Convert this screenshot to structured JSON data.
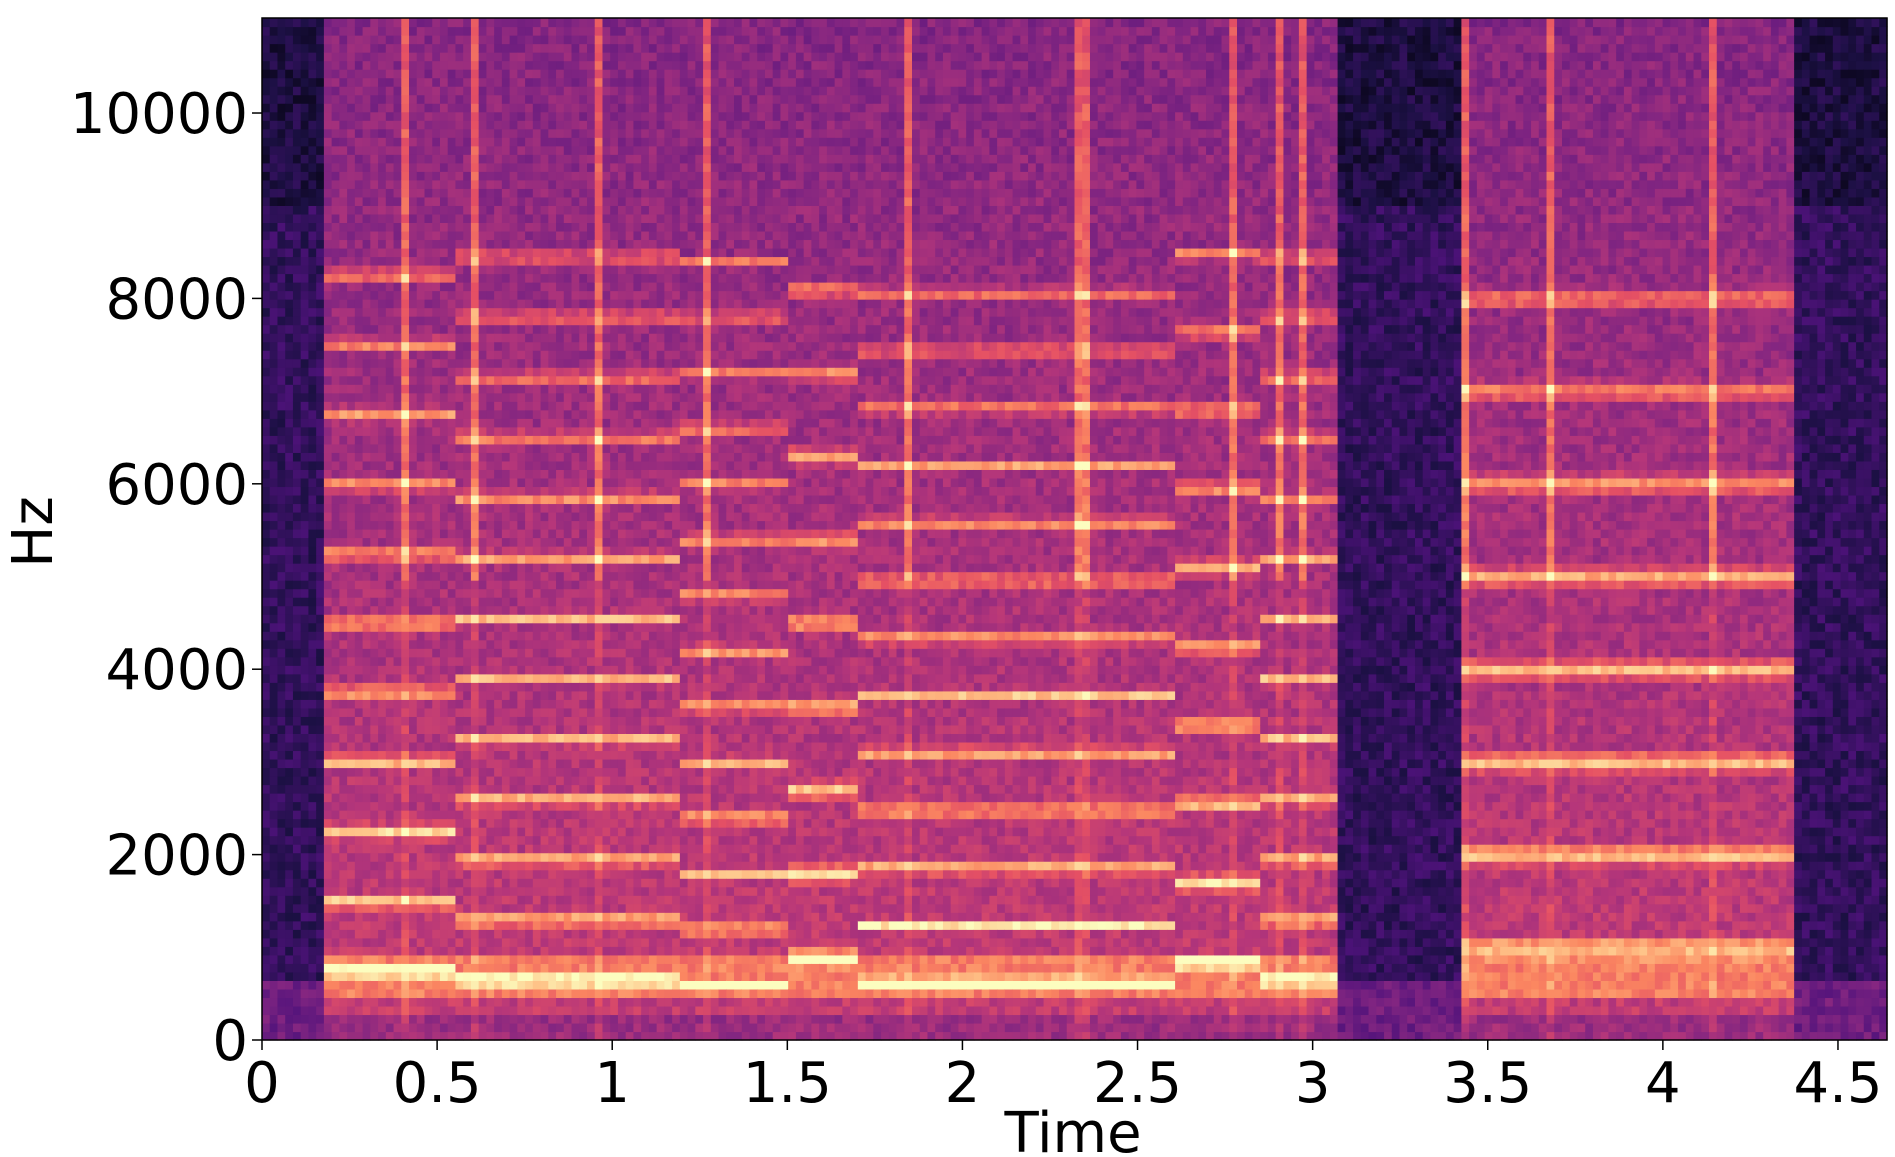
{
  "chart_data": {
    "type": "heatmap",
    "title": "",
    "xlabel": "Time",
    "ylabel": "Hz",
    "xlim": [
      0,
      4.64
    ],
    "ylim": [
      0,
      11025
    ],
    "colormap": "magma",
    "colormap_stops": [
      "#000004",
      "#1c1044",
      "#4f127b",
      "#812581",
      "#b5367a",
      "#e55064",
      "#fb8761",
      "#fec287",
      "#fcfdbf"
    ],
    "x_ticks": [
      {
        "value": 0,
        "label": "0"
      },
      {
        "value": 0.5,
        "label": "0.5"
      },
      {
        "value": 1,
        "label": "1"
      },
      {
        "value": 1.5,
        "label": "1.5"
      },
      {
        "value": 2,
        "label": "2"
      },
      {
        "value": 2.5,
        "label": "2.5"
      },
      {
        "value": 3,
        "label": "3"
      },
      {
        "value": 3.5,
        "label": "3.5"
      },
      {
        "value": 4,
        "label": "4"
      },
      {
        "value": 4.5,
        "label": "4.5"
      }
    ],
    "y_ticks": [
      {
        "value": 0,
        "label": "0"
      },
      {
        "value": 2000,
        "label": "2000"
      },
      {
        "value": 4000,
        "label": "4000"
      },
      {
        "value": 6000,
        "label": "6000"
      },
      {
        "value": 8000,
        "label": "8000"
      },
      {
        "value": 10000,
        "label": "10000"
      }
    ],
    "silent_intervals": [
      [
        0,
        0.18
      ],
      [
        3.07,
        3.42
      ],
      [
        4.38,
        4.64
      ]
    ],
    "voiced_segments": [
      {
        "start": 0.18,
        "end": 0.55,
        "f0": 750
      },
      {
        "start": 0.55,
        "end": 1.2,
        "f0": 650
      },
      {
        "start": 1.2,
        "end": 1.5,
        "f0": 600
      },
      {
        "start": 1.5,
        "end": 1.7,
        "f0": 900
      },
      {
        "start": 1.7,
        "end": 2.6,
        "f0": 620
      },
      {
        "start": 2.6,
        "end": 2.85,
        "f0": 850
      },
      {
        "start": 2.85,
        "end": 3.07,
        "f0": 650
      },
      {
        "start": 3.42,
        "end": 4.38,
        "f0": 1000
      }
    ]
  }
}
